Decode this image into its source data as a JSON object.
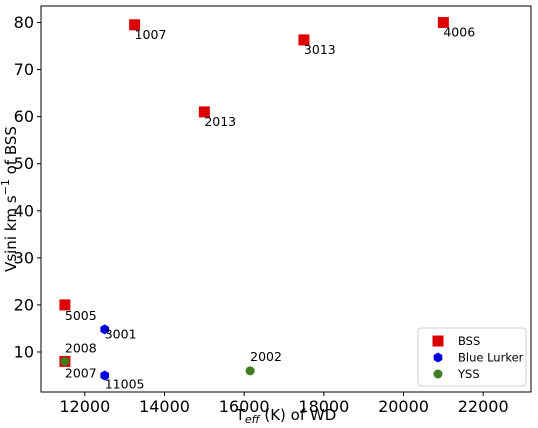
{
  "chart_data": {
    "type": "scatter",
    "title": "",
    "xlabel": {
      "main": "T",
      "sub": "eff",
      "rest": " (K) of WD"
    },
    "ylabel": {
      "main": "Vsini km s",
      "sup": "−1",
      "rest": " of BSS"
    },
    "xlim": [
      10900,
      23200
    ],
    "ylim": [
      1.5,
      83.5
    ],
    "xticks": [
      12000,
      14000,
      16000,
      18000,
      20000,
      22000
    ],
    "yticks": [
      10,
      20,
      30,
      40,
      50,
      60,
      70,
      80
    ],
    "grid": false,
    "legend_position": "bottom-right",
    "series": [
      {
        "name": "BSS",
        "marker": "square",
        "color": "#dd0000",
        "points": [
          {
            "x": 13250,
            "y": 79.5,
            "label": "1007"
          },
          {
            "x": 17500,
            "y": 76.3,
            "label": "3013"
          },
          {
            "x": 21000,
            "y": 80.0,
            "label": "4006"
          },
          {
            "x": 15000,
            "y": 61.0,
            "label": "2013"
          },
          {
            "x": 11500,
            "y": 20.0,
            "label": "5005"
          },
          {
            "x": 11500,
            "y": 8.0,
            "label": "2007"
          }
        ]
      },
      {
        "name": "Blue Lurker",
        "marker": "hexagon",
        "color": "#0000dd",
        "points": [
          {
            "x": 12500,
            "y": 14.8,
            "label": "3001"
          },
          {
            "x": 12500,
            "y": 5.0,
            "label": "11005"
          }
        ]
      },
      {
        "name": "YSS",
        "marker": "circle",
        "color": "#3e7d22",
        "points": [
          {
            "x": 11500,
            "y": 8.0,
            "label": "2008"
          },
          {
            "x": 16150,
            "y": 6.0,
            "label": "2002"
          }
        ]
      }
    ]
  }
}
